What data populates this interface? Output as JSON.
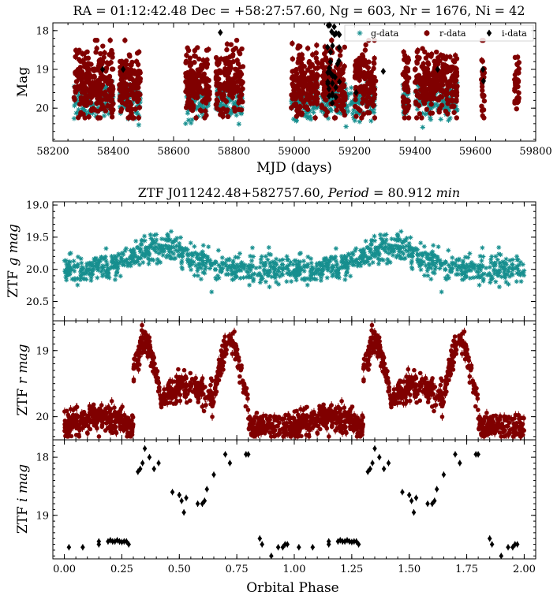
{
  "colors": {
    "g": "#178f8f",
    "r": "#800000",
    "i": "#000000"
  },
  "chart_data": [
    {
      "type": "scatter",
      "title": "RA = 01:12:42.48 Dec = +58:27:57.60, Ng = 603, Nr = 1676, Ni = 42",
      "xlabel": "MJD (days)",
      "ylabel": "Mag",
      "xlim": [
        58200,
        59800
      ],
      "ylim": [
        20.85,
        17.8
      ],
      "xticks": [
        "58200",
        "58400",
        "58600",
        "58800",
        "59000",
        "59200",
        "59400",
        "59600",
        "59800"
      ],
      "yticks": [
        "18",
        "19",
        "20"
      ],
      "legend": {
        "position": "top-right",
        "entries": [
          "g-data",
          "r-data",
          "i-data"
        ]
      },
      "series": [
        {
          "name": "g-data",
          "marker": "star",
          "mjd_clusters": [
            [
              58270,
              58400
            ],
            [
              58420,
              58490
            ],
            [
              58640,
              58720
            ],
            [
              58740,
              58830
            ],
            [
              58990,
              59080
            ],
            [
              59090,
              59160
            ],
            [
              59160,
              59270
            ],
            [
              59360,
              59380
            ],
            [
              59400,
              59540
            ]
          ],
          "mag_range": [
            19.5,
            20.3
          ]
        },
        {
          "name": "r-data",
          "marker": "circle",
          "mjd_clusters": [
            [
              58270,
              58400
            ],
            [
              58420,
              58490
            ],
            [
              58640,
              58720
            ],
            [
              58740,
              58830
            ],
            [
              58990,
              59080
            ],
            [
              59090,
              59170
            ],
            [
              59200,
              59270
            ],
            [
              59360,
              59380
            ],
            [
              59400,
              59540
            ],
            [
              59620,
              59630
            ],
            [
              59730,
              59745
            ]
          ],
          "mag_range": [
            18.3,
            20.2
          ]
        },
        {
          "name": "i-data",
          "marker": "diamond",
          "mjd_clusters": [
            [
              58360,
              58370
            ],
            [
              58430,
              58440
            ],
            [
              58750,
              58760
            ],
            [
              59110,
              59150
            ],
            [
              59200,
              59210
            ],
            [
              59290,
              59300
            ],
            [
              59470,
              59480
            ],
            [
              59620,
              59630
            ]
          ],
          "mag_range": [
            17.8,
            20.0
          ]
        }
      ]
    },
    {
      "type": "scatter",
      "title": "ZTF J011242.48+582757.60, Period = 80.912 min",
      "title_plain": "ZTF J011242.48+582757.60, ",
      "title_italic1": "Period",
      "title_value": " = 80.912 ",
      "title_italic2": "min",
      "ylabel": "ZTF g mag",
      "ylabel_plain": "ZTF ",
      "ylabel_italic": "g mag",
      "xlim": [
        -0.05,
        2.05
      ],
      "ylim": [
        20.8,
        18.95
      ],
      "yticks": [
        "19.0",
        "19.5",
        "20.0",
        "20.5"
      ],
      "series": [
        {
          "name": "g",
          "marker": "star",
          "mean_mag": 20.0,
          "amplitude": 0.35,
          "peak_phase": 0.42,
          "points_per_cycle": 603
        }
      ]
    },
    {
      "type": "scatter",
      "ylabel": "ZTF r mag",
      "ylabel_plain": "ZTF ",
      "ylabel_italic": "r mag",
      "xlim": [
        -0.05,
        2.05
      ],
      "ylim": [
        20.35,
        18.55
      ],
      "yticks": [
        "19",
        "20"
      ],
      "series": [
        {
          "name": "r",
          "marker": "circle",
          "baseline_mag": 20.15,
          "hump1_mag": 18.85,
          "hump1_phase": 0.35,
          "dip_mag": 19.55,
          "dip_phase": 0.5,
          "hump2_mag": 18.85,
          "hump2_phase": 0.72,
          "eclipse_phase": 0.8,
          "points_per_cycle": 1676
        }
      ]
    },
    {
      "type": "scatter",
      "xlabel": "Orbital Phase",
      "ylabel": "ZTF i mag",
      "ylabel_plain": "ZTF ",
      "ylabel_italic": "i mag",
      "xlim": [
        -0.05,
        2.05
      ],
      "ylim": [
        19.75,
        17.7
      ],
      "xticks": [
        "0.00",
        "0.25",
        "0.50",
        "0.75",
        "1.00",
        "1.25",
        "1.50",
        "1.75",
        "2.00"
      ],
      "yticks": [
        "18",
        "19"
      ],
      "series": [
        {
          "name": "i",
          "marker": "diamond",
          "phase": [
            0.02,
            0.08,
            0.15,
            0.15,
            0.19,
            0.2,
            0.21,
            0.22,
            0.23,
            0.24,
            0.25,
            0.26,
            0.27,
            0.28,
            0.32,
            0.33,
            0.34,
            0.35,
            0.37,
            0.39,
            0.41,
            0.47,
            0.5,
            0.51,
            0.52,
            0.53,
            0.58,
            0.6,
            0.61,
            0.62,
            0.65,
            0.7,
            0.72,
            0.79,
            0.8,
            0.85,
            0.86,
            0.9,
            0.93,
            0.95,
            0.96,
            0.97
          ],
          "mag": [
            19.55,
            19.55,
            19.5,
            19.45,
            19.45,
            19.43,
            19.45,
            19.45,
            19.43,
            19.45,
            19.46,
            19.45,
            19.45,
            19.5,
            18.25,
            18.2,
            18.1,
            17.85,
            18.0,
            18.2,
            18.1,
            18.6,
            18.65,
            18.75,
            18.95,
            18.7,
            18.8,
            18.8,
            18.75,
            18.55,
            18.3,
            17.95,
            18.1,
            17.95,
            17.95,
            19.4,
            19.5,
            19.7,
            19.55,
            19.55,
            19.5,
            19.5
          ]
        }
      ]
    }
  ]
}
